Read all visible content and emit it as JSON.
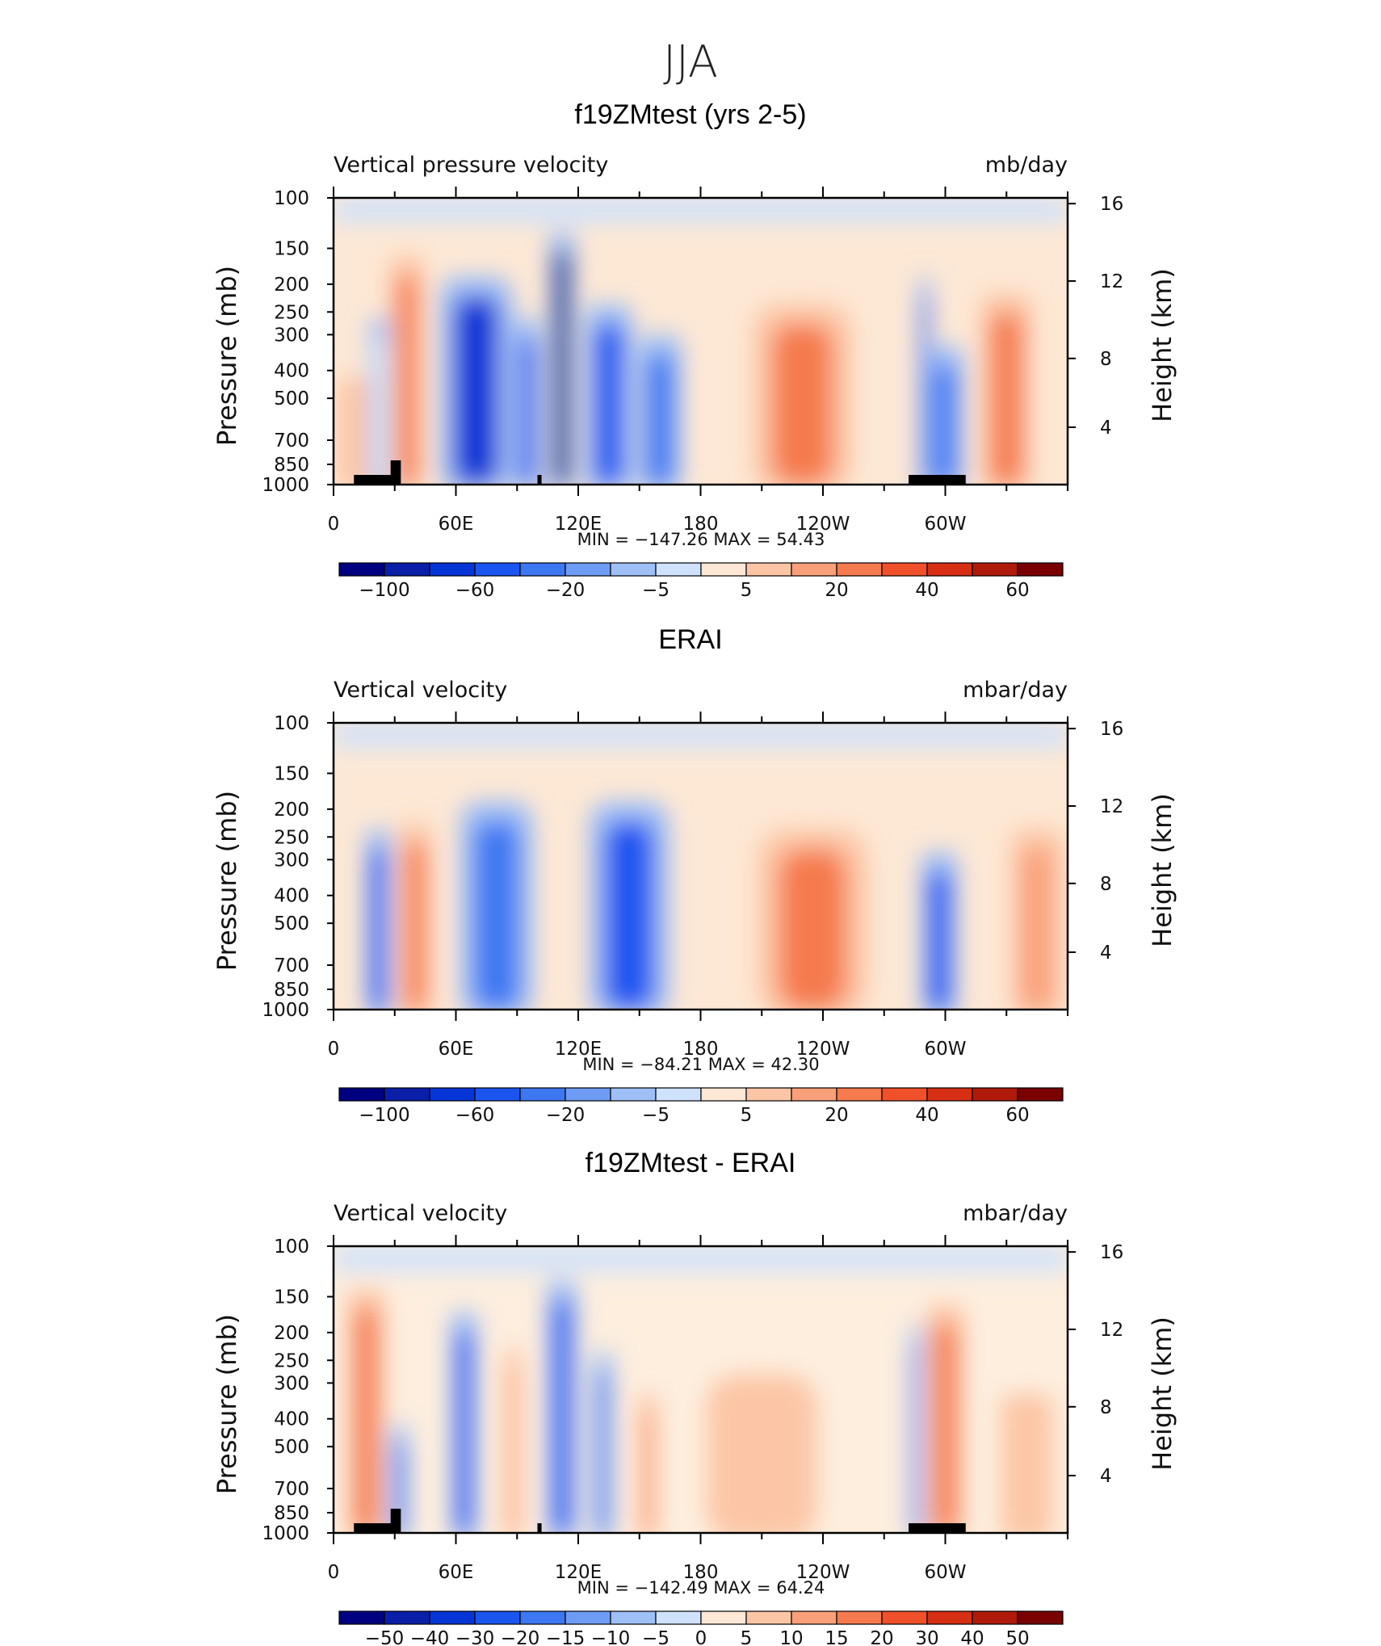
{
  "figure": {
    "title": "JJA",
    "colors": [
      "#000080",
      "#0a1fa8",
      "#0535d6",
      "#1a55f0",
      "#3d77f2",
      "#6e9cf5",
      "#9fbff7",
      "#cfe2fb",
      "#fde8d5",
      "#fcc6a6",
      "#f9a07a",
      "#f57a4e",
      "#f0502a",
      "#d62f14",
      "#b01a0a",
      "#7a0000"
    ]
  },
  "chart_data": [
    {
      "type": "heatmap",
      "title": "f19ZMtest (yrs 2-5)",
      "left_label": "Vertical pressure velocity",
      "right_label": "mb/day",
      "ylabel": "Pressure (mb)",
      "ylabel_right": "Height (km)",
      "yticks": [
        "100",
        "150",
        "200",
        "250",
        "300",
        "400",
        "500",
        "700",
        "850",
        "1000"
      ],
      "yticks_right": [
        "16",
        "12",
        "8",
        "4"
      ],
      "xticks": [
        "0",
        "60E",
        "120E",
        "180",
        "120W",
        "60W"
      ],
      "xlim_deg": [
        0,
        360
      ],
      "ylim_mb": [
        1000,
        100
      ],
      "minmax": "MIN = −147.26   MAX =   54.43",
      "colorbar_labels": [
        "−100",
        "−60",
        "−20",
        "−5",
        "5",
        "20",
        "40",
        "60"
      ],
      "orography": true,
      "features": [
        {
          "lon": 10,
          "top": 450,
          "width": 9,
          "value": 8
        },
        {
          "lon": 24,
          "top": 280,
          "width": 7,
          "value": -3
        },
        {
          "lon": 36,
          "top": 170,
          "width": 9,
          "value": 25
        },
        {
          "lon": 70,
          "top": 200,
          "width": 20,
          "value": -60
        },
        {
          "lon": 95,
          "top": 280,
          "width": 7,
          "value": -40
        },
        {
          "lon": 112,
          "top": 140,
          "width": 7,
          "value": -130
        },
        {
          "lon": 135,
          "top": 250,
          "width": 13,
          "value": -55
        },
        {
          "lon": 160,
          "top": 320,
          "width": 12,
          "value": -25
        },
        {
          "lon": 230,
          "top": 250,
          "width": 27,
          "value": 28
        },
        {
          "lon": 290,
          "top": 200,
          "width": 3,
          "value": -40
        },
        {
          "lon": 300,
          "top": 350,
          "width": 10,
          "value": -35
        },
        {
          "lon": 330,
          "top": 230,
          "width": 14,
          "value": 30
        }
      ]
    },
    {
      "type": "heatmap",
      "title": "ERAI",
      "left_label": "Vertical velocity",
      "right_label": "mbar/day",
      "ylabel": "Pressure (mb)",
      "ylabel_right": "Height (km)",
      "yticks": [
        "100",
        "150",
        "200",
        "250",
        "300",
        "400",
        "500",
        "700",
        "850",
        "1000"
      ],
      "yticks_right": [
        "16",
        "12",
        "8",
        "4"
      ],
      "xticks": [
        "0",
        "60E",
        "120E",
        "180",
        "120W",
        "60W"
      ],
      "xlim_deg": [
        0,
        360
      ],
      "ylim_mb": [
        1000,
        100
      ],
      "minmax": "MIN = −84.21   MAX =   42.30",
      "colorbar_labels": [
        "−100",
        "−60",
        "−20",
        "−5",
        "5",
        "20",
        "40",
        "60"
      ],
      "orography": false,
      "features": [
        {
          "lon": 22,
          "top": 250,
          "width": 7,
          "value": -45
        },
        {
          "lon": 40,
          "top": 240,
          "width": 9,
          "value": 30
        },
        {
          "lon": 80,
          "top": 200,
          "width": 20,
          "value": -35
        },
        {
          "lon": 145,
          "top": 200,
          "width": 22,
          "value": -55
        },
        {
          "lon": 235,
          "top": 250,
          "width": 30,
          "value": 22
        },
        {
          "lon": 297,
          "top": 300,
          "width": 10,
          "value": -40
        },
        {
          "lon": 345,
          "top": 250,
          "width": 14,
          "value": 15
        }
      ]
    },
    {
      "type": "heatmap",
      "title": "f19ZMtest - ERAI",
      "left_label": "Vertical velocity",
      "right_label": "mbar/day",
      "ylabel": "Pressure (mb)",
      "ylabel_right": "Height (km)",
      "yticks": [
        "100",
        "150",
        "200",
        "250",
        "300",
        "400",
        "500",
        "700",
        "850",
        "1000"
      ],
      "yticks_right": [
        "16",
        "12",
        "8",
        "4"
      ],
      "xticks": [
        "0",
        "60E",
        "120E",
        "180",
        "120W",
        "60W"
      ],
      "xlim_deg": [
        0,
        360
      ],
      "ylim_mb": [
        1000,
        100
      ],
      "minmax": "MIN = −142.49   MAX =   64.24",
      "colorbar_labels": [
        "−50",
        "−40",
        "−30",
        "−20",
        "−15",
        "−10",
        "−5",
        "0",
        "5",
        "10",
        "15",
        "20",
        "30",
        "40",
        "50"
      ],
      "orography": true,
      "features": [
        {
          "lon": 16,
          "top": 150,
          "width": 10,
          "value": 30
        },
        {
          "lon": 32,
          "top": 450,
          "width": 5,
          "value": -25
        },
        {
          "lon": 64,
          "top": 180,
          "width": 7,
          "value": -40
        },
        {
          "lon": 88,
          "top": 240,
          "width": 4,
          "value": 15
        },
        {
          "lon": 112,
          "top": 140,
          "width": 8,
          "value": -55
        },
        {
          "lon": 132,
          "top": 250,
          "width": 5,
          "value": -30
        },
        {
          "lon": 154,
          "top": 350,
          "width": 5,
          "value": 20
        },
        {
          "lon": 210,
          "top": 300,
          "width": 30,
          "value": 9
        },
        {
          "lon": 286,
          "top": 200,
          "width": 3,
          "value": -30
        },
        {
          "lon": 300,
          "top": 170,
          "width": 10,
          "value": 30
        },
        {
          "lon": 340,
          "top": 350,
          "width": 14,
          "value": 7
        }
      ]
    }
  ]
}
